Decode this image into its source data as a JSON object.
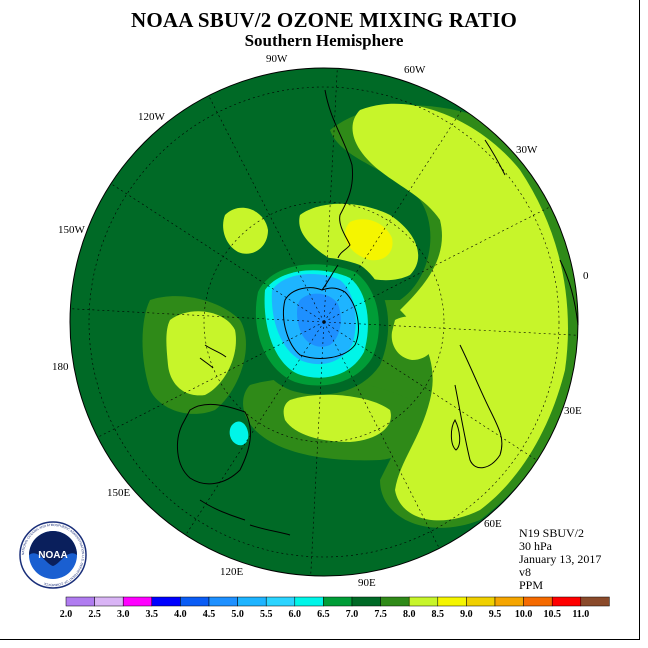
{
  "header": {
    "title": "NOAA SBUV/2 OZONE MIXING RATIO",
    "subtitle": "Southern Hemisphere"
  },
  "map": {
    "projection": "south polar stereographic",
    "longitude_labels": [
      {
        "text": "90W"
      },
      {
        "text": "60W"
      },
      {
        "text": "120W"
      },
      {
        "text": "30W"
      },
      {
        "text": "150W"
      },
      {
        "text": "0"
      },
      {
        "text": "180"
      },
      {
        "text": "30E"
      },
      {
        "text": "150E"
      },
      {
        "text": "60E"
      },
      {
        "text": "120E"
      },
      {
        "text": "90E"
      }
    ]
  },
  "info": {
    "satellite": "N19 SBUV/2",
    "level": "30 hPa",
    "date": "January 13, 2017",
    "version": "v8",
    "units": "PPM"
  },
  "logo": {
    "text": "NOAA",
    "ring_text": "NATIONAL OCEANIC AND ATMOSPHERIC ADMINISTRATION U.S. DEPARTMENT OF COMMERCE"
  },
  "colorbar": {
    "labels": [
      "2.0",
      "2.5",
      "3.0",
      "3.5",
      "4.0",
      "4.5",
      "5.0",
      "5.5",
      "6.0",
      "6.5",
      "7.0",
      "7.5",
      "8.0",
      "8.5",
      "9.0",
      "9.5",
      "10.0",
      "10.5",
      "11.0"
    ],
    "colors": [
      "#b07cf0",
      "#d9b4f5",
      "#ff00ff",
      "#0000ff",
      "#0a5cf5",
      "#1e90ff",
      "#1eb4ff",
      "#2bd4ff",
      "#00f5e8",
      "#009d37",
      "#006a26",
      "#2f8a18",
      "#c7f52a",
      "#f5f500",
      "#f0d000",
      "#f5a500",
      "#f56a00",
      "#ff0000",
      "#8a4a2a"
    ],
    "field_colors": {
      "c_5_5": "#1eb4ff",
      "c_5_0": "#1e90ff",
      "c_6_0": "#00f5e8",
      "c_6_5": "#009d37",
      "c_7_0": "#006a26",
      "c_7_5": "#2f8a18",
      "c_8_0": "#c7f52a",
      "c_8_5": "#f5f500"
    }
  }
}
